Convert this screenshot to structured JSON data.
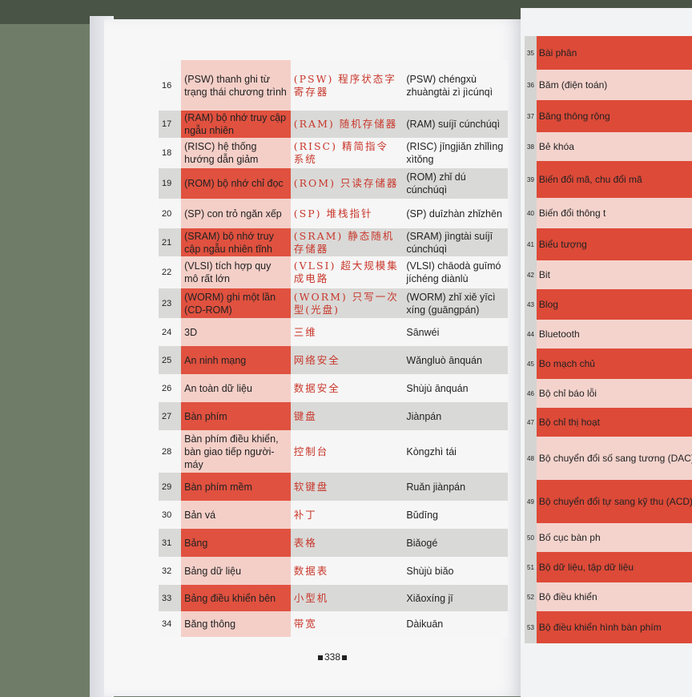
{
  "left_rows": [
    {
      "num": "16",
      "vi": "(PSW) thanh ghi từ trạng thái chương trình",
      "zh": "(PSW) 程序状态字寄存器",
      "py": "(PSW) chéngxù zhuàngtài zì jìcúnqì"
    },
    {
      "num": "17",
      "vi": "(RAM) bộ nhớ truy cập ngẫu nhiên",
      "zh": "(RAM) 随机存储器",
      "py": "(RAM) suíjī cúnchúqì"
    },
    {
      "num": "18",
      "vi": "(RISC) hệ thống hướng dẫn giảm",
      "zh": "(RISC) 精简指令系统",
      "py": "(RISC) jīngjiǎn zhǐlìng xìtǒng"
    },
    {
      "num": "19",
      "vi": "(ROM) bộ nhớ chỉ đọc",
      "zh": "(ROM) 只读存储器",
      "py": "(ROM) zhǐ dú cúnchúqì"
    },
    {
      "num": "20",
      "vi": "(SP) con trỏ ngăn xếp",
      "zh": "(SP) 堆栈指针",
      "py": "(SP) duīzhàn zhǐzhēn"
    },
    {
      "num": "21",
      "vi": "(SRAM) bộ nhớ truy cập ngẫu nhiên tĩnh",
      "zh": "(SRAM) 静态随机存储器",
      "py": "(SRAM) jìngtài suíjī cúnchúqì"
    },
    {
      "num": "22",
      "vi": "(VLSI) tích hợp quy mô rất lớn",
      "zh": "(VLSI) 超大规模集成电路",
      "py": "(VLSI) chāodà guīmó jíchéng diànlù"
    },
    {
      "num": "23",
      "vi": "(WORM) ghi một lần (CD-ROM)",
      "zh": "(WORM) 只写一次型(光盘)",
      "py": "(WORM) zhǐ xiě yīcì xíng (guāngpán)"
    },
    {
      "num": "24",
      "vi": "3D",
      "zh": "三维",
      "py": "Sānwéi"
    },
    {
      "num": "25",
      "vi": "An ninh mạng",
      "zh": "网络安全",
      "py": "Wǎngluò ānquán"
    },
    {
      "num": "26",
      "vi": "An toàn dữ liệu",
      "zh": "数据安全",
      "py": "Shùjù ānquán"
    },
    {
      "num": "27",
      "vi": "Bàn phím",
      "zh": "键盘",
      "py": "Jiànpán"
    },
    {
      "num": "28",
      "vi": "Bàn phím điều khiển, bàn giao tiếp người-máy",
      "zh": "控制台",
      "py": "Kòngzhì tái"
    },
    {
      "num": "29",
      "vi": "Bàn phím mềm",
      "zh": "软键盘",
      "py": "Ruǎn jiànpán"
    },
    {
      "num": "30",
      "vi": "Bản vá",
      "zh": "补丁",
      "py": "Bǔdīng"
    },
    {
      "num": "31",
      "vi": "Bảng",
      "zh": "表格",
      "py": "Biǎogé"
    },
    {
      "num": "32",
      "vi": "Bảng dữ liệu",
      "zh": "数据表",
      "py": "Shùjù biǎo"
    },
    {
      "num": "33",
      "vi": "Bảng điều khiển bên",
      "zh": "小型机",
      "py": "Xiǎoxíng jī"
    },
    {
      "num": "34",
      "vi": "Băng thông",
      "zh": "带宽",
      "py": "Dàikuān"
    }
  ],
  "right_rows": [
    {
      "num": "35",
      "vi": "Bài phân"
    },
    {
      "num": "36",
      "vi": "Băm (điện toán)"
    },
    {
      "num": "37",
      "vi": "Băng thông rộng"
    },
    {
      "num": "38",
      "vi": "Bẻ khóa"
    },
    {
      "num": "39",
      "vi": "Biến đổi mã, chu đổi mã"
    },
    {
      "num": "40",
      "vi": "Biến đổi thông t"
    },
    {
      "num": "41",
      "vi": "Biểu tượng"
    },
    {
      "num": "42",
      "vi": "Bit"
    },
    {
      "num": "43",
      "vi": "Blog"
    },
    {
      "num": "44",
      "vi": "Bluetooth"
    },
    {
      "num": "45",
      "vi": "Bo mạch chủ"
    },
    {
      "num": "46",
      "vi": "Bộ chỉ báo lỗi"
    },
    {
      "num": "47",
      "vi": "Bộ chỉ thị hoạt"
    },
    {
      "num": "48",
      "vi": "Bộ chuyển đổi số sang tương (DAC)"
    },
    {
      "num": "49",
      "vi": "Bộ chuyển đổi tự sang kỹ thu (ACD)"
    },
    {
      "num": "50",
      "vi": "Bố cục bàn ph"
    },
    {
      "num": "51",
      "vi": "Bộ dữ liệu, tập dữ liệu"
    },
    {
      "num": "52",
      "vi": "Bộ điều khiển"
    },
    {
      "num": "53",
      "vi": "Bộ điều khiển hình bàn phím"
    }
  ],
  "page_number": "338",
  "colors": {
    "red_cell": "#e0513f",
    "pink_cell": "#f4cfc8",
    "gray_cell": "#d9d9d7",
    "chinese_text": "#c8372b"
  }
}
